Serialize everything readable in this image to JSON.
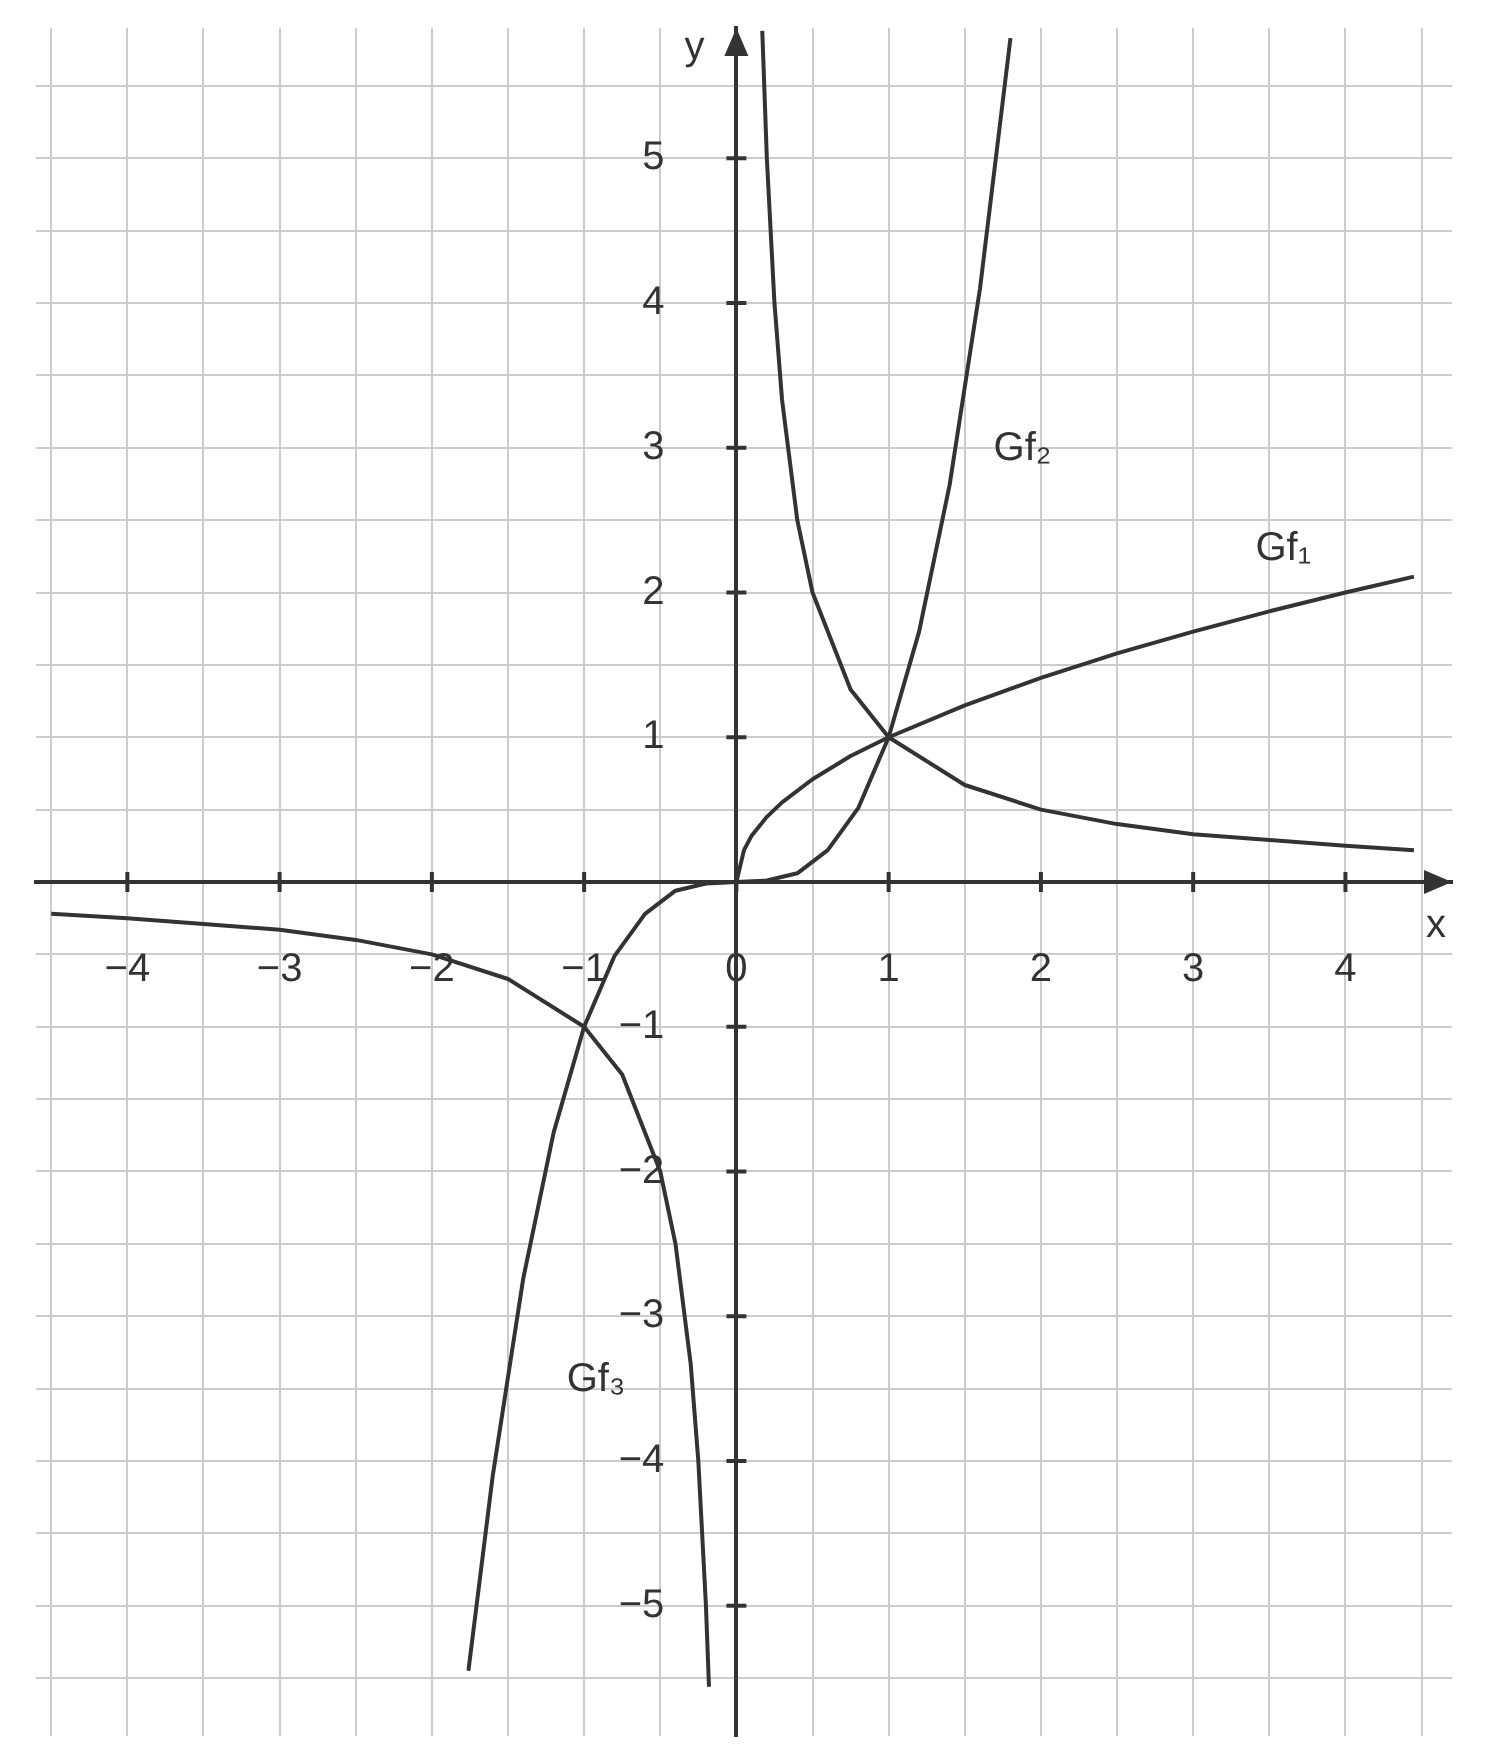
{
  "chart_data": {
    "type": "line",
    "xlabel": "x",
    "ylabel": "y",
    "xlim": [
      -4.6,
      4.7
    ],
    "ylim": [
      -5.9,
      5.9
    ],
    "xticks": [
      {
        "value": -4.5,
        "label": null
      },
      {
        "value": -4,
        "label": "−4"
      },
      {
        "value": -3.5,
        "label": null
      },
      {
        "value": -3,
        "label": "−3"
      },
      {
        "value": -2.5,
        "label": null
      },
      {
        "value": -2,
        "label": "−2"
      },
      {
        "value": -1.5,
        "label": null
      },
      {
        "value": -1,
        "label": "−1"
      },
      {
        "value": -0.5,
        "label": null
      },
      {
        "value": 0,
        "label": "0"
      },
      {
        "value": 0.5,
        "label": null
      },
      1,
      {
        "value": 1.5,
        "label": null
      },
      2,
      {
        "value": 2.5,
        "label": null
      },
      3,
      {
        "value": 3.5,
        "label": null
      },
      4,
      {
        "value": 4.5,
        "label": null
      }
    ],
    "yticks": [
      {
        "value": -5.5,
        "label": null
      },
      {
        "value": -5,
        "label": "−5"
      },
      {
        "value": -4.5,
        "label": null
      },
      {
        "value": -4,
        "label": "−4"
      },
      {
        "value": -3.5,
        "label": null
      },
      {
        "value": -3,
        "label": "−3"
      },
      {
        "value": -2.5,
        "label": null
      },
      {
        "value": -2,
        "label": "−2"
      },
      {
        "value": -1.5,
        "label": null
      },
      {
        "value": -1,
        "label": "−1"
      },
      {
        "value": -0.5,
        "label": null
      },
      {
        "value": 0.5,
        "label": null
      },
      1,
      {
        "value": 1.5,
        "label": null
      },
      2,
      {
        "value": 2.5,
        "label": null
      },
      3,
      {
        "value": 3.5,
        "label": null
      },
      4,
      {
        "value": 4.5,
        "label": null
      },
      5,
      {
        "value": 5.5,
        "label": null
      }
    ],
    "grid": true,
    "legend": false,
    "marker": "none",
    "line_style": "solid",
    "series": [
      {
        "name": "Gf₁",
        "color": "#333333",
        "x": [
          0,
          0.05,
          0.1,
          0.2,
          0.3,
          0.5,
          0.75,
          1,
          1.5,
          2,
          2.5,
          3,
          3.5,
          4,
          4.45
        ],
        "values": [
          0,
          0.22,
          0.32,
          0.45,
          0.55,
          0.71,
          0.87,
          1,
          1.22,
          1.41,
          1.58,
          1.73,
          1.87,
          2,
          2.11
        ]
      },
      {
        "name": "Gf₂",
        "color": "#333333",
        "x": [
          -1.76,
          -1.6,
          -1.4,
          -1.2,
          -1,
          -0.8,
          -0.6,
          -0.4,
          -0.2,
          0,
          0.2,
          0.4,
          0.6,
          0.8,
          1,
          1.2,
          1.4,
          1.6,
          1.8
        ],
        "values": [
          -5.45,
          -4.1,
          -2.74,
          -1.73,
          -1,
          -0.51,
          -0.22,
          -0.06,
          -0.01,
          0,
          0.01,
          0.06,
          0.22,
          0.51,
          1,
          1.73,
          2.74,
          4.1,
          5.83
        ]
      },
      {
        "name": "Gf₃",
        "color": "#333333",
        "x": [
          -4.5,
          -4,
          -3.5,
          -3,
          -2.5,
          -2,
          -1.5,
          -1,
          -0.75,
          -0.5,
          -0.4,
          -0.3,
          -0.25,
          -0.2,
          -0.18,
          0,
          0.17,
          0.2,
          0.25,
          0.3,
          0.4,
          0.5,
          0.75,
          1,
          1.5,
          2,
          2.5,
          3,
          3.5,
          4,
          4.45
        ],
        "values": [
          -0.22,
          -0.25,
          -0.29,
          -0.33,
          -0.4,
          -0.5,
          -0.67,
          -1,
          -1.33,
          -2,
          -2.5,
          -3.33,
          -4,
          -5,
          -5.56,
          null,
          5.88,
          5,
          4,
          3.33,
          2.5,
          2,
          1.33,
          1,
          0.67,
          0.5,
          0.4,
          0.33,
          0.29,
          0.25,
          0.22
        ]
      }
    ]
  }
}
